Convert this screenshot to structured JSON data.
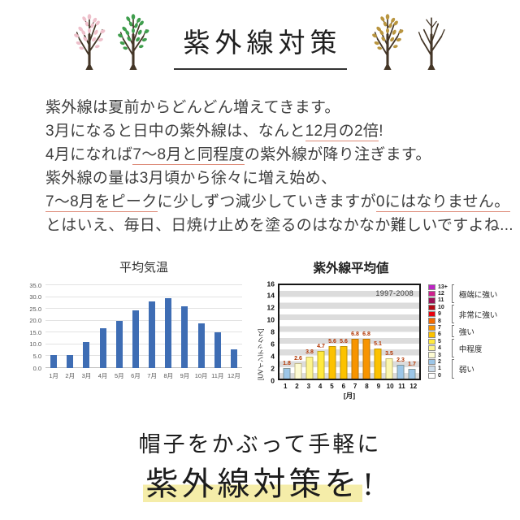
{
  "header": {
    "title": "紫外線対策"
  },
  "intro": {
    "lines": [
      [
        {
          "t": "紫外線は夏前からどんどん増えてきます。"
        }
      ],
      [
        {
          "t": "3月になると日中の紫外線は、なんと"
        },
        {
          "t": "12月の2倍",
          "u": 1
        },
        {
          "t": "!"
        }
      ],
      [
        {
          "t": "4月になれば"
        },
        {
          "t": "7〜8月と同程度",
          "u": 1
        },
        {
          "t": "の紫外線が降り注ぎます。"
        }
      ],
      [
        {
          "t": "紫外線の量は3月頃から徐々に増え始め、"
        }
      ],
      [
        {
          "t": "7〜8月をピーク",
          "u": 1
        },
        {
          "t": "に少しずつ減少していきますが"
        },
        {
          "t": "0にはなりません。",
          "u": 1
        }
      ],
      [
        {
          "t": "とはいえ、毎日、日焼け止めを塗るのはなかなか難しいですよね..."
        }
      ]
    ],
    "underline_color": "#dd8b78"
  },
  "chart_data": [
    {
      "type": "bar",
      "title": "平均気温",
      "categories": [
        "1月",
        "2月",
        "3月",
        "4月",
        "5月",
        "6月",
        "7月",
        "8月",
        "9月",
        "10月",
        "11月",
        "12月"
      ],
      "values": [
        5.5,
        5.4,
        11.0,
        16.8,
        19.9,
        24.4,
        28.3,
        29.5,
        26.2,
        19.0,
        15.1,
        7.8
      ],
      "xlabel": "",
      "ylabel": "",
      "ylim": [
        0,
        35
      ],
      "ytick_step": 5,
      "grid": true,
      "bar_color": "#3e6db4",
      "legend_position": "none"
    },
    {
      "type": "bar",
      "title": "紫外線平均値",
      "annotation": "1997-2008",
      "categories": [
        "1",
        "2",
        "3",
        "4",
        "5",
        "6",
        "7",
        "8",
        "9",
        "10",
        "11",
        "12"
      ],
      "values": [
        1.8,
        2.6,
        3.8,
        4.7,
        5.6,
        5.6,
        6.8,
        6.8,
        5.1,
        3.5,
        2.3,
        1.7
      ],
      "bar_colors": [
        "#9cc6e8",
        "#fdfbd2",
        "#fdf48c",
        "#ffe93e",
        "#fcc200",
        "#fcc200",
        "#f79400",
        "#f79400",
        "#fcc200",
        "#fbf6ae",
        "#9cc6e8",
        "#9cc6e8"
      ],
      "xlabel": "[月]",
      "ylabel": "[UVインデックス]",
      "ylim": [
        0,
        16
      ],
      "ytick_step": 2,
      "grid": "striped",
      "legend_position": "right",
      "legend": {
        "levels": [
          {
            "label": "13+",
            "color": "#bd24c4"
          },
          {
            "label": "12",
            "color": "#cf1f8e"
          },
          {
            "label": "11",
            "color": "#9c1057"
          },
          {
            "label": "10",
            "color": "#b40a14"
          },
          {
            "label": "9",
            "color": "#e8000d"
          },
          {
            "label": "8",
            "color": "#f26b00"
          },
          {
            "label": "7",
            "color": "#f79400"
          },
          {
            "label": "6",
            "color": "#fcc200"
          },
          {
            "label": "5",
            "color": "#ffe93e"
          },
          {
            "label": "4",
            "color": "#fdf48c"
          },
          {
            "label": "3",
            "color": "#fdfbd2"
          },
          {
            "label": "2",
            "color": "#9cc6e8"
          },
          {
            "label": "1",
            "color": "#ccdcea"
          },
          {
            "label": "0",
            "color": "#ffffff"
          }
        ],
        "groups": [
          {
            "label": "極端に強い",
            "span": [
              0,
              2
            ]
          },
          {
            "label": "非常に強い",
            "span": [
              3,
              5
            ]
          },
          {
            "label": "強い",
            "span": [
              6,
              7
            ]
          },
          {
            "label": "中程度",
            "span": [
              8,
              10
            ]
          },
          {
            "label": "弱い",
            "span": [
              11,
              13
            ]
          }
        ]
      }
    }
  ],
  "footer": {
    "line1": "帽子をかぶって手軽に",
    "line2_highlight": "紫外線対策を",
    "line2_suffix": "!",
    "highlight_color": "#f5eda9"
  }
}
